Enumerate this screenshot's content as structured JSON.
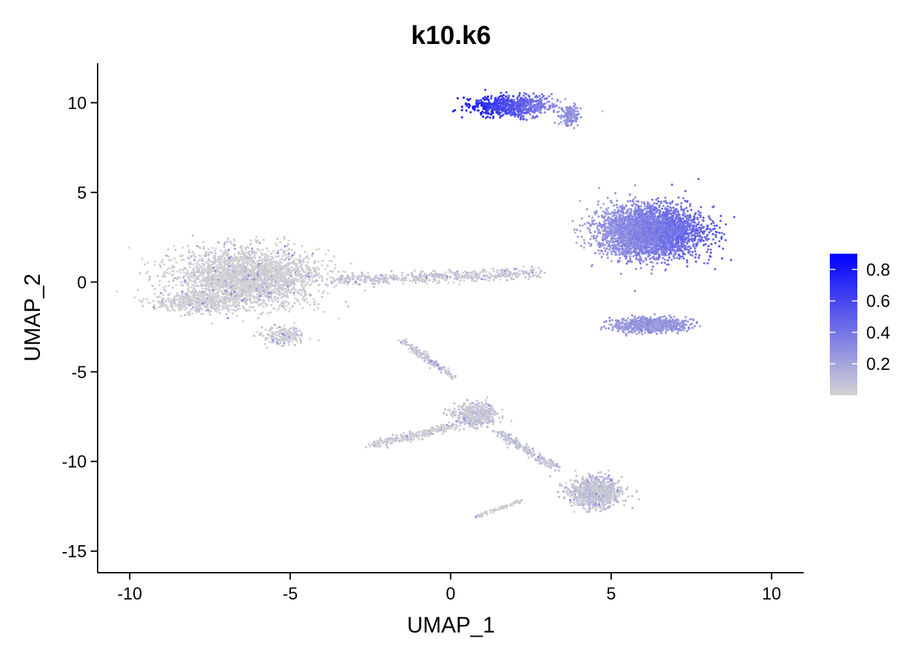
{
  "chart_data": {
    "type": "scatter",
    "title": "k10.k6",
    "xlabel": "UMAP_1",
    "ylabel": "UMAP_2",
    "xlim": [
      -11,
      11
    ],
    "ylim": [
      -16.2,
      12.2
    ],
    "x_ticks": [
      -10,
      -5,
      0,
      5,
      10
    ],
    "x_tick_labels": [
      "-10",
      "-5",
      "0",
      "5",
      "10"
    ],
    "y_ticks": [
      -15,
      -10,
      -5,
      0,
      5,
      10
    ],
    "y_tick_labels": [
      "-15",
      "-10",
      "-5",
      "0",
      "5",
      "10"
    ],
    "grid": false,
    "legend": {
      "position": "right",
      "type": "colorbar",
      "range": [
        0.0,
        0.9
      ],
      "ticks": [
        0.2,
        0.4,
        0.6,
        0.8
      ],
      "tick_labels": [
        "0.2",
        "0.4",
        "0.6",
        "0.8"
      ],
      "low_color": "#d3d3d3",
      "high_color": "#0000ff"
    },
    "clusters": [
      {
        "name": "left blob",
        "cx": -6.3,
        "cy": 0.3,
        "sx": 2.0,
        "sy": 1.4,
        "n": 2600,
        "level": 0.0
      },
      {
        "name": "left blob lower lobe",
        "cx": -7.8,
        "cy": -1.1,
        "sx": 1.4,
        "sy": 0.5,
        "n": 500,
        "level": 0.0
      },
      {
        "name": "left blob bottom",
        "cx": -5.2,
        "cy": -3.0,
        "sx": 0.6,
        "sy": 0.45,
        "n": 200,
        "level": 0.01
      },
      {
        "name": "bridge",
        "x0": -3.5,
        "y0": 0.1,
        "x1": 2.8,
        "y1": 0.5,
        "spread": 0.3,
        "n": 500,
        "level": 0.04
      },
      {
        "name": "top cluster",
        "cx": 1.9,
        "cy": 9.8,
        "sx": 1.2,
        "sy": 0.55,
        "n": 700,
        "level": 0.55
      },
      {
        "name": "top cluster tail",
        "cx": 3.7,
        "cy": 9.3,
        "sx": 0.25,
        "sy": 0.5,
        "n": 150,
        "level": 0.28
      },
      {
        "name": "right large cluster",
        "cx": 6.2,
        "cy": 2.8,
        "sx": 1.45,
        "sy": 1.25,
        "n": 3400,
        "level": 0.36
      },
      {
        "name": "right lower cluster",
        "cx": 6.2,
        "cy": -2.4,
        "sx": 1.0,
        "sy": 0.38,
        "n": 700,
        "level": 0.26
      },
      {
        "name": "lower top branch",
        "x0": -1.5,
        "y0": -3.3,
        "x1": 0.1,
        "y1": -5.3,
        "spread": 0.15,
        "n": 180,
        "level": 0.04
      },
      {
        "name": "lower middle blob",
        "cx": 0.8,
        "cy": -7.4,
        "sx": 0.6,
        "sy": 0.6,
        "n": 500,
        "level": 0.05
      },
      {
        "name": "lower left arm",
        "x0": -2.5,
        "y0": -9.1,
        "x1": 0.2,
        "y1": -8.0,
        "spread": 0.2,
        "n": 260,
        "level": 0.02
      },
      {
        "name": "lower connector",
        "x0": 1.5,
        "y0": -8.4,
        "x1": 3.3,
        "y1": -10.4,
        "spread": 0.2,
        "n": 200,
        "level": 0.06
      },
      {
        "name": "bottom right blob",
        "cx": 4.5,
        "cy": -11.7,
        "sx": 0.75,
        "sy": 0.75,
        "n": 900,
        "level": 0.07
      },
      {
        "name": "bottom small arm",
        "x0": 0.8,
        "y0": -13.1,
        "x1": 2.2,
        "y1": -12.2,
        "spread": 0.1,
        "n": 80,
        "level": 0.01
      }
    ]
  }
}
